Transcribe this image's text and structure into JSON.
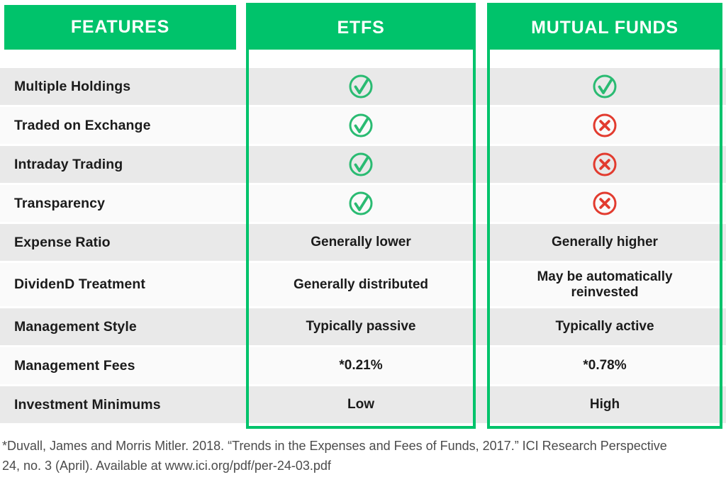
{
  "chart_data": {
    "type": "table",
    "columns": [
      "FEATURES",
      "ETFS",
      "MUTUAL FUNDS"
    ],
    "rows": [
      {
        "feature": "Multiple Holdings",
        "etfs": "check",
        "mutual_funds": "check"
      },
      {
        "feature": "Traded on Exchange",
        "etfs": "check",
        "mutual_funds": "cross"
      },
      {
        "feature": "Intraday Trading",
        "etfs": "check",
        "mutual_funds": "cross"
      },
      {
        "feature": "Transparency",
        "etfs": "check",
        "mutual_funds": "cross"
      },
      {
        "feature": "Expense Ratio",
        "etfs": "Generally lower",
        "mutual_funds": "Generally higher"
      },
      {
        "feature": "DividenD Treatment",
        "etfs": "Generally distributed",
        "mutual_funds": "May be automatically reinvested"
      },
      {
        "feature": "Management Style",
        "etfs": "Typically passive",
        "mutual_funds": "Typically active"
      },
      {
        "feature": "Management Fees",
        "etfs": "*0.21%",
        "mutual_funds": "*0.78%"
      },
      {
        "feature": "Investment Minimums",
        "etfs": "Low",
        "mutual_funds": "High"
      }
    ],
    "legend": {
      "check": "yes",
      "cross": "no"
    },
    "footnote_line1": "*Duvall, James and Morris Mitler. 2018. “Trends in the Expenses and Fees of Funds, 2017.” ICI Research Perspective",
    "footnote_line2": "24, no. 3 (April). Available at www.ici.org/pdf/per-24-03.pdf"
  },
  "colors": {
    "header_green": "#00c36b",
    "check_green": "#2abb72",
    "cross_red": "#e23b2f",
    "row_gray": "#e9e9e9",
    "row_light": "#fafafa",
    "text_dark": "#1b1b1b",
    "footnote_gray": "#4b4b4b"
  }
}
